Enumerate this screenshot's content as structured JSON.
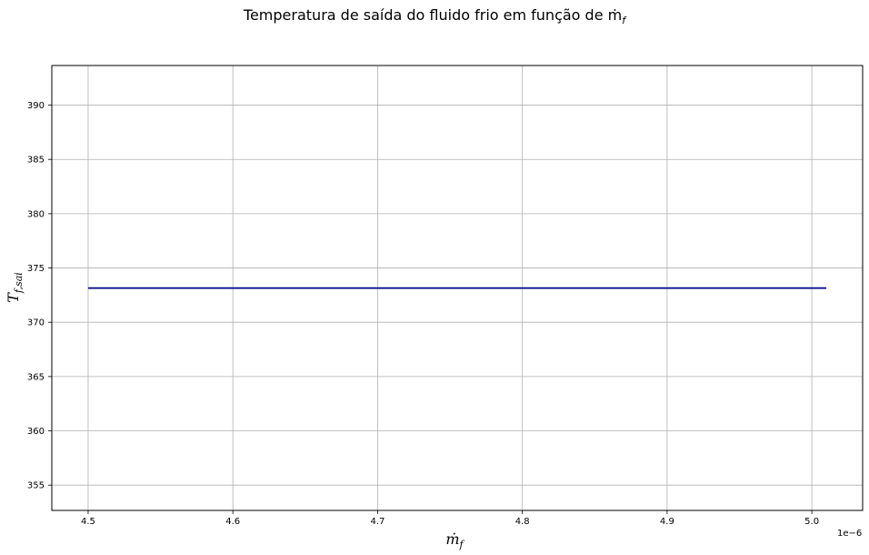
{
  "chart_data": {
    "type": "line",
    "title": "Temperatura de saída do fluido frio em função de ṁ",
    "title_subscript": "f",
    "xlabel": "ṁ",
    "xlabel_subscript": "f",
    "ylabel": "T",
    "ylabel_subscript": "f,sai",
    "x_offset_label": "1e−6",
    "x_ticks": [
      "4.5",
      "4.6",
      "4.7",
      "4.8",
      "4.9",
      "5.0"
    ],
    "x_tick_values": [
      4.5,
      4.6,
      4.7,
      4.8,
      4.9,
      5.0
    ],
    "y_ticks": [
      "355",
      "360",
      "365",
      "370",
      "375",
      "380",
      "385",
      "390"
    ],
    "y_tick_values": [
      355,
      360,
      365,
      370,
      375,
      380,
      385,
      390
    ],
    "xlim": [
      4.4749,
      5.0351
    ],
    "ylim": [
      352.67,
      393.65
    ],
    "grid": true,
    "series": [
      {
        "color": "#00008b",
        "x": [
          4.5,
          5.01
        ],
        "y": [
          373.15,
          373.15
        ]
      }
    ]
  }
}
